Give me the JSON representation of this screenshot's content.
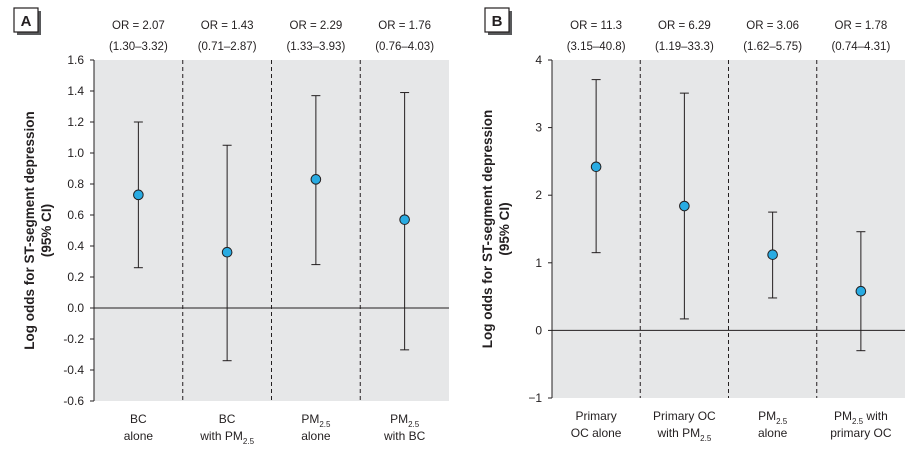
{
  "chart_data": [
    {
      "type": "scatter",
      "panel_label": "A",
      "ylabel": "Log odds for ST-segment depression (95% CI)",
      "ylim": [
        -0.6,
        1.6
      ],
      "y_ticks": [
        "1.6",
        "1.4",
        "1.2",
        "1.0",
        "0.8",
        "0.6",
        "0.4",
        "0.2",
        "0.0",
        "-0.2",
        "-0.4",
        "-0.6"
      ],
      "reference_line": 0,
      "grid": false,
      "categories": [
        {
          "lines": [
            {
              "text": "BC"
            },
            {
              "text": "alone"
            }
          ]
        },
        {
          "lines": [
            {
              "text": "BC"
            },
            {
              "text": "with PM",
              "sub": "2.5"
            }
          ]
        },
        {
          "lines": [
            {
              "text": "PM",
              "sub": "2.5"
            },
            {
              "text": "alone"
            }
          ]
        },
        {
          "lines": [
            {
              "text": "PM",
              "sub": "2.5"
            },
            {
              "text": "with BC"
            }
          ]
        }
      ],
      "estimates": [
        {
          "or": "OR = 2.07",
          "ci": "(1.30–3.32)",
          "log_odds": 0.73,
          "lower": 0.26,
          "upper": 1.2
        },
        {
          "or": "OR = 1.43",
          "ci": "(0.71–2.87)",
          "log_odds": 0.36,
          "lower": -0.34,
          "upper": 1.05
        },
        {
          "or": "OR = 2.29",
          "ci": "(1.33–3.93)",
          "log_odds": 0.83,
          "lower": 0.28,
          "upper": 1.37
        },
        {
          "or": "OR = 1.76",
          "ci": "(0.76–4.03)",
          "log_odds": 0.57,
          "lower": -0.27,
          "upper": 1.39
        }
      ]
    },
    {
      "type": "scatter",
      "panel_label": "B",
      "ylabel": "Log odds for ST-segment depression (95% CI)",
      "ylim": [
        -1,
        4
      ],
      "y_ticks": [
        "4",
        "3",
        "2",
        "1",
        "0",
        "−1"
      ],
      "reference_line": 0,
      "grid": false,
      "categories": [
        {
          "lines": [
            {
              "text": "Primary"
            },
            {
              "text": "OC alone"
            }
          ]
        },
        {
          "lines": [
            {
              "text": "Primary OC"
            },
            {
              "text": "with PM",
              "sub": "2.5"
            }
          ]
        },
        {
          "lines": [
            {
              "text": "PM",
              "sub": "2.5"
            },
            {
              "text": "alone"
            }
          ]
        },
        {
          "lines": [
            {
              "text": "PM",
              "sub": "2.5",
              "after": " with"
            },
            {
              "text": "primary OC"
            }
          ]
        }
      ],
      "estimates": [
        {
          "or": "OR = 11.3",
          "ci": "(3.15–40.8)",
          "log_odds": 2.42,
          "lower": 1.15,
          "upper": 3.71
        },
        {
          "or": "OR = 6.29",
          "ci": "(1.19–33.3)",
          "log_odds": 1.84,
          "lower": 0.17,
          "upper": 3.51
        },
        {
          "or": "OR = 3.06",
          "ci": "(1.62–5.75)",
          "log_odds": 1.12,
          "lower": 0.48,
          "upper": 1.75
        },
        {
          "or": "OR = 1.78",
          "ci": "(0.74–4.31)",
          "log_odds": 0.58,
          "lower": -0.3,
          "upper": 1.46
        }
      ]
    }
  ],
  "colors": {
    "plot_background": "#e6e7e8",
    "point_fill": "#29abe2",
    "line": "#231f20"
  }
}
